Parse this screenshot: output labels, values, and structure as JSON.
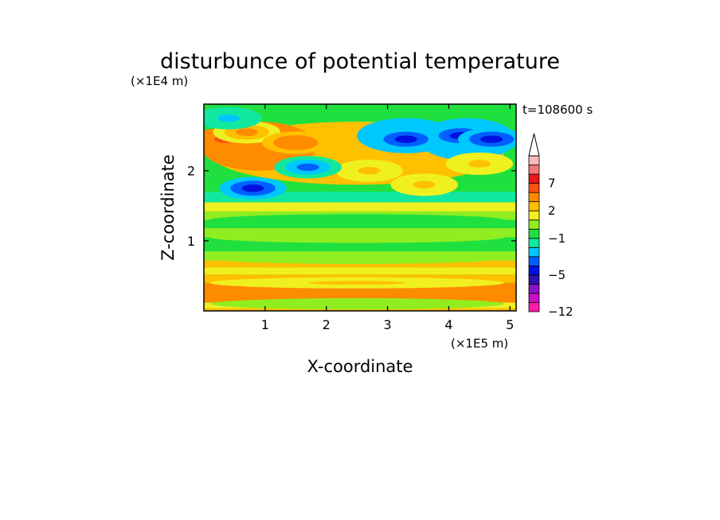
{
  "chart_data": {
    "type": "heatmap",
    "title": "disturbunce of potential temperature",
    "time_label": "t=108600 s",
    "xlabel": "X-coordinate",
    "ylabel": "Z-coordinate",
    "x_scale_label": "(×1E5 m)",
    "y_scale_label": "(×1E4 m)",
    "xlim": [
      0,
      5.1
    ],
    "ylim": [
      0,
      2.95
    ],
    "x_ticks": [
      1,
      2,
      3,
      4,
      5
    ],
    "y_ticks": [
      1,
      2
    ],
    "grid": false,
    "colorbar": {
      "labels": [
        {
          "value": 7,
          "text": "7"
        },
        {
          "value": 2,
          "text": "2"
        },
        {
          "value": -1,
          "text": "−1"
        },
        {
          "value": -5,
          "text": "−5"
        },
        {
          "value": -12,
          "text": "−12"
        }
      ],
      "levels": [
        -12,
        -10,
        -8,
        -6,
        -5,
        -4,
        -3,
        -2,
        -1,
        0,
        1,
        2,
        3,
        5,
        7,
        9,
        11
      ],
      "colors": [
        "#ff1aa8",
        "#cc10c8",
        "#8a10c8",
        "#3010b0",
        "#0010e0",
        "#0060ff",
        "#00c8ff",
        "#10e8a0",
        "#20e040",
        "#90ee20",
        "#f0f020",
        "#ffc000",
        "#ff8c00",
        "#ff5010",
        "#e81818",
        "#f07878",
        "#f8b8b8"
      ],
      "extend_top": true
    },
    "field_features": [
      {
        "x": 0.35,
        "z": 2.45,
        "value": 7
      },
      {
        "x": 0.7,
        "z": 2.55,
        "value": 4
      },
      {
        "x": 1.5,
        "z": 2.4,
        "value": 6
      },
      {
        "x": 2.7,
        "z": 2.0,
        "value": 3
      },
      {
        "x": 3.6,
        "z": 1.8,
        "value": 3
      },
      {
        "x": 4.5,
        "z": 2.1,
        "value": 3
      },
      {
        "x": 3.3,
        "z": 2.45,
        "value": -5
      },
      {
        "x": 4.2,
        "z": 2.5,
        "value": -6
      },
      {
        "x": 4.7,
        "z": 2.45,
        "value": -5
      },
      {
        "x": 0.8,
        "z": 1.75,
        "value": -5
      },
      {
        "x": 1.7,
        "z": 2.05,
        "value": -4
      },
      {
        "x": 0.4,
        "z": 2.75,
        "value": -3
      },
      {
        "x": 2.5,
        "z": 1.3,
        "value": -1
      },
      {
        "x": 2.5,
        "z": 1.05,
        "value": 0
      },
      {
        "x": 2.5,
        "z": 0.75,
        "value": 1
      },
      {
        "x": 2.5,
        "z": 0.4,
        "value": 3
      },
      {
        "x": 2.5,
        "z": 0.1,
        "value": 1
      }
    ]
  }
}
